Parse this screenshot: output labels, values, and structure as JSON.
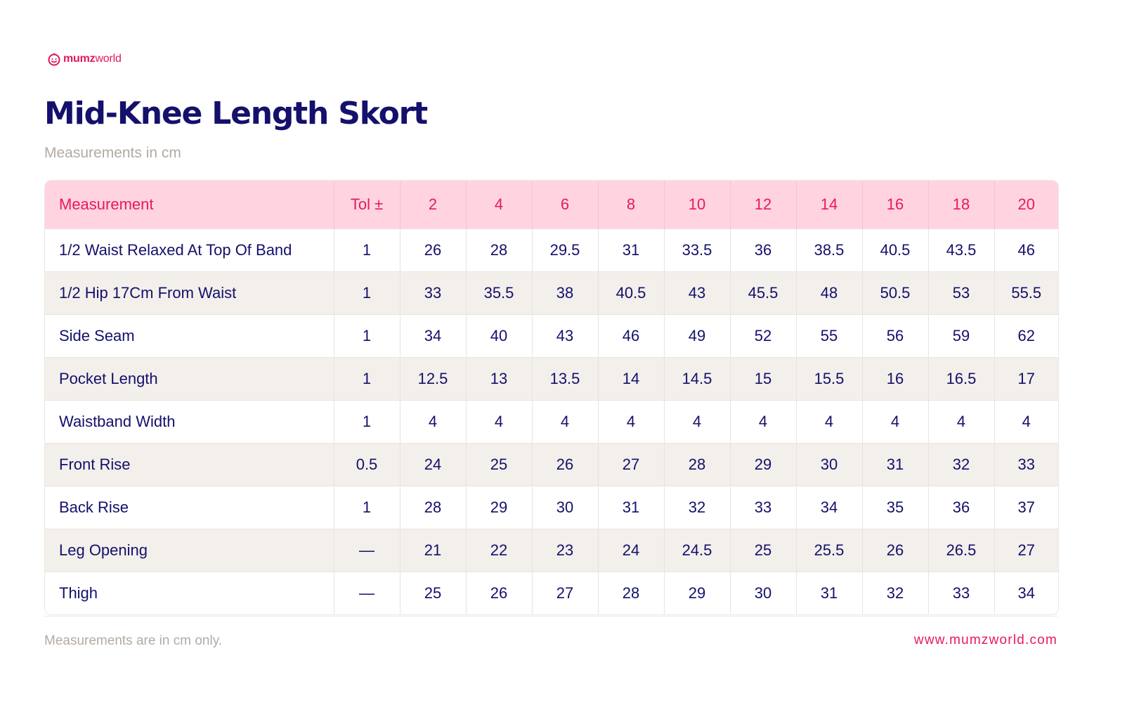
{
  "brand": {
    "logo_bold": "mumz",
    "logo_light": "world",
    "logo_icon": "smiley-face-icon",
    "accent_color": "#e8185d",
    "text_color": "#14106b"
  },
  "title": "Mid-Knee Length Skort",
  "subtitle": "Measurements in cm",
  "table": {
    "headers": [
      "Measurement",
      "Tol ±",
      "2",
      "4",
      "6",
      "8",
      "10",
      "12",
      "14",
      "16",
      "18",
      "20"
    ],
    "rows": [
      [
        "1/2 Waist Relaxed At Top Of Band",
        "1",
        "26",
        "28",
        "29.5",
        "31",
        "33.5",
        "36",
        "38.5",
        "40.5",
        "43.5",
        "46"
      ],
      [
        "1/2 Hip 17Cm From Waist",
        "1",
        "33",
        "35.5",
        "38",
        "40.5",
        "43",
        "45.5",
        "48",
        "50.5",
        "53",
        "55.5"
      ],
      [
        "Side Seam",
        "1",
        "34",
        "40",
        "43",
        "46",
        "49",
        "52",
        "55",
        "56",
        "59",
        "62"
      ],
      [
        "Pocket Length",
        "1",
        "12.5",
        "13",
        "13.5",
        "14",
        "14.5",
        "15",
        "15.5",
        "16",
        "16.5",
        "17"
      ],
      [
        "Waistband Width",
        "1",
        "4",
        "4",
        "4",
        "4",
        "4",
        "4",
        "4",
        "4",
        "4",
        "4"
      ],
      [
        "Front Rise",
        "0.5",
        "24",
        "25",
        "26",
        "27",
        "28",
        "29",
        "30",
        "31",
        "32",
        "33"
      ],
      [
        "Back Rise",
        "1",
        "28",
        "29",
        "30",
        "31",
        "32",
        "33",
        "34",
        "35",
        "36",
        "37"
      ],
      [
        "Leg Opening",
        "—",
        "21",
        "22",
        "23",
        "24",
        "24.5",
        "25",
        "25.5",
        "26",
        "26.5",
        "27"
      ],
      [
        "Thigh",
        "—",
        "25",
        "26",
        "27",
        "28",
        "29",
        "30",
        "31",
        "32",
        "33",
        "34"
      ]
    ]
  },
  "footer": {
    "note": "Measurements are in cm only.",
    "url": "www.mumzworld.com"
  }
}
